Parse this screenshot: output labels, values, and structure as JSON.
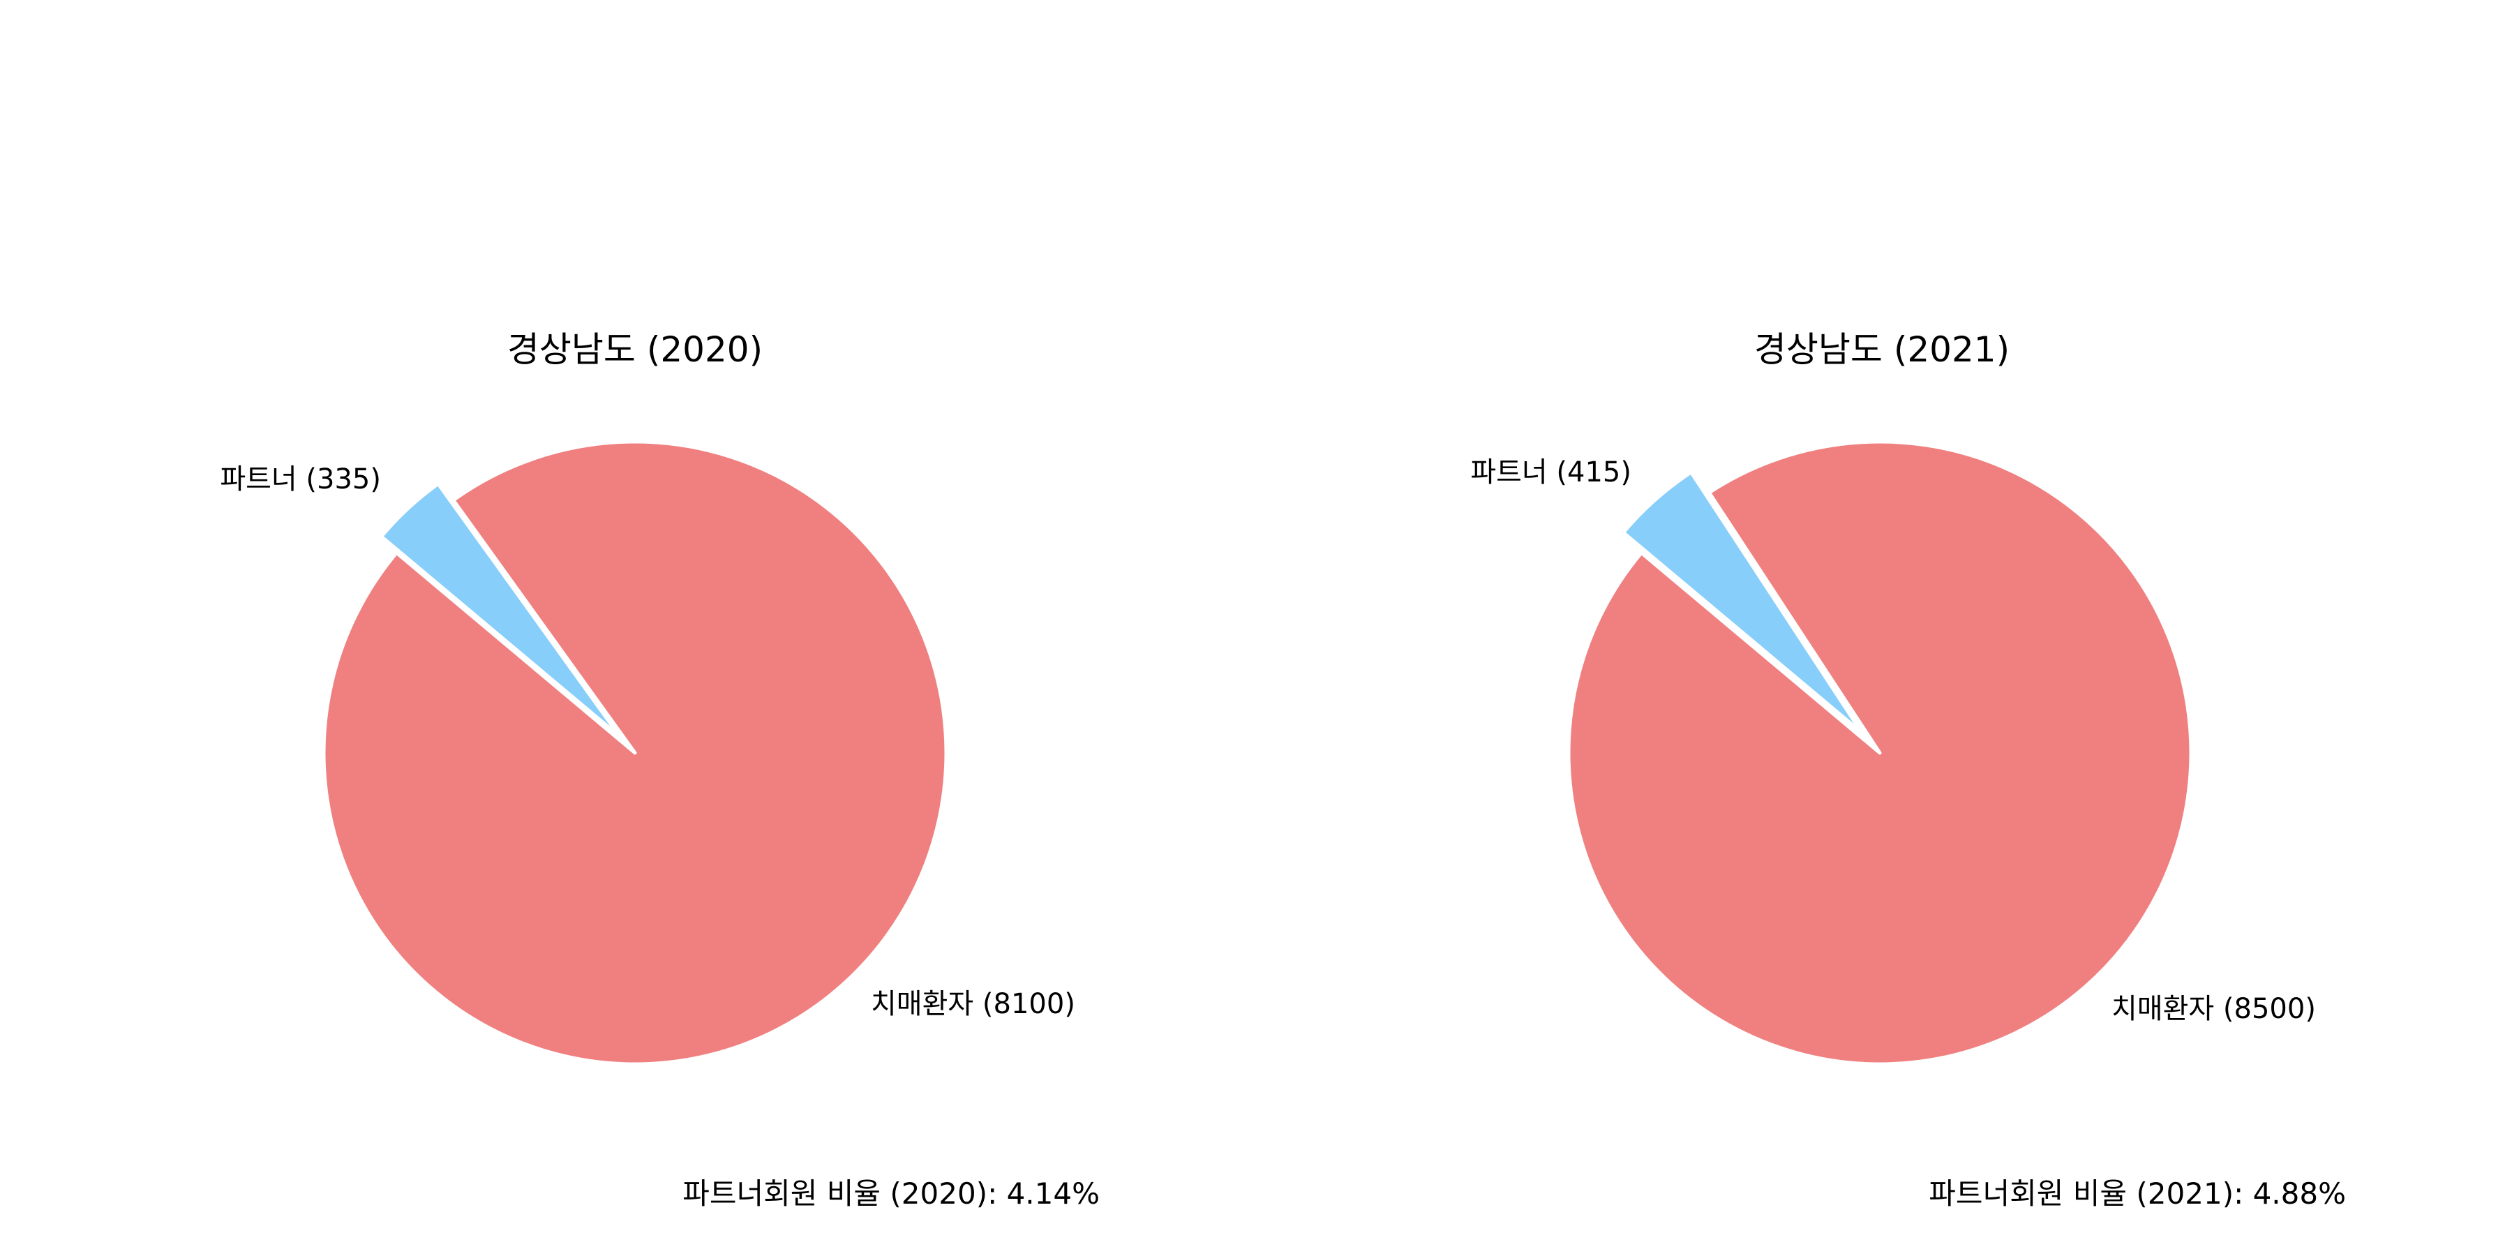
{
  "chart_data": [
    {
      "type": "pie",
      "title": "경상남도 (2020)",
      "slices": [
        {
          "label": "치매환자 (8100)",
          "value": 8100,
          "color": "#f08080"
        },
        {
          "label": "파트너 (335)",
          "value": 335,
          "color": "#87cefa"
        }
      ],
      "footnote": "파트너회원 비율 (2020): 4.14%"
    },
    {
      "type": "pie",
      "title": "경상남도 (2021)",
      "slices": [
        {
          "label": "치매환자 (8500)",
          "value": 8500,
          "color": "#f08080"
        },
        {
          "label": "파트너 (415)",
          "value": 415,
          "color": "#87cefa"
        }
      ],
      "footnote": "파트너회원 비율 (2021): 4.88%"
    }
  ]
}
